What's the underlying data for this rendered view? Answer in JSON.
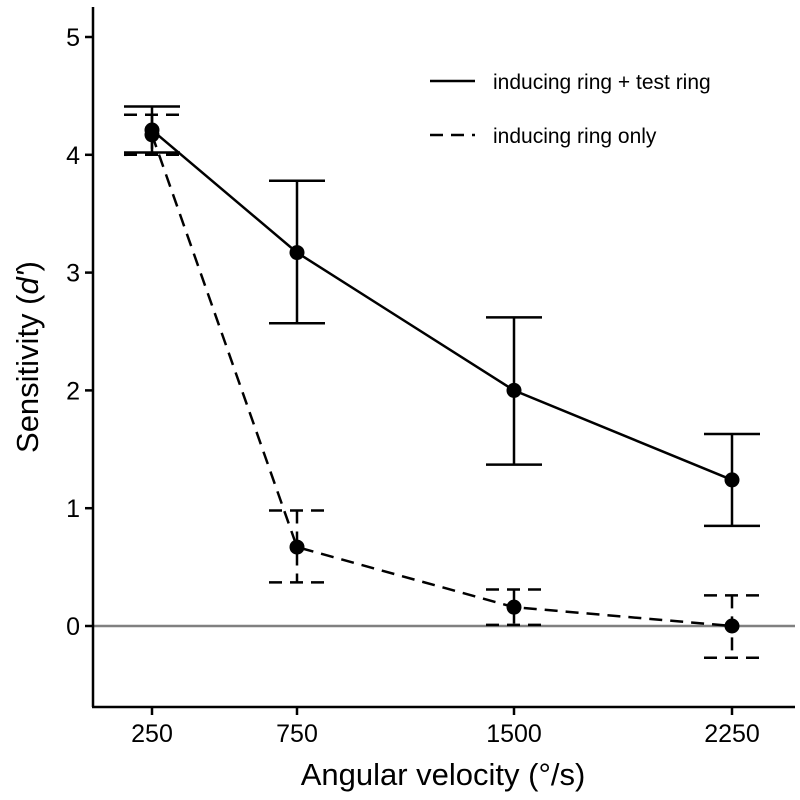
{
  "chart_data": {
    "type": "line",
    "xlabel": "Angular velocity (°/s)",
    "ylabel_prefix": "Sensitivity (",
    "ylabel_italic": "d'",
    "ylabel_suffix": ")",
    "categories": [
      "250",
      "750",
      "1500",
      "2250"
    ],
    "yticks": [
      "0",
      "1",
      "2",
      "3",
      "4",
      "5"
    ],
    "ylim": [
      -0.7,
      5.25
    ],
    "reference_line": 0,
    "colors": {
      "line": "#000000",
      "reference": "#808080",
      "axis": "#000000"
    },
    "legend_position": "top-right",
    "series": [
      {
        "name": "inducing ring + test ring",
        "style": "solid",
        "values": [
          4.21,
          3.17,
          2.0,
          1.24
        ],
        "err_low": [
          4.02,
          2.57,
          1.37,
          0.85
        ],
        "err_high": [
          4.41,
          3.78,
          2.62,
          1.63
        ]
      },
      {
        "name": "inducing ring only",
        "style": "dashed",
        "values": [
          4.17,
          0.67,
          0.16,
          0.0
        ],
        "err_low": [
          4.0,
          0.37,
          0.01,
          -0.27
        ],
        "err_high": [
          4.34,
          0.98,
          0.31,
          0.26
        ]
      }
    ]
  }
}
